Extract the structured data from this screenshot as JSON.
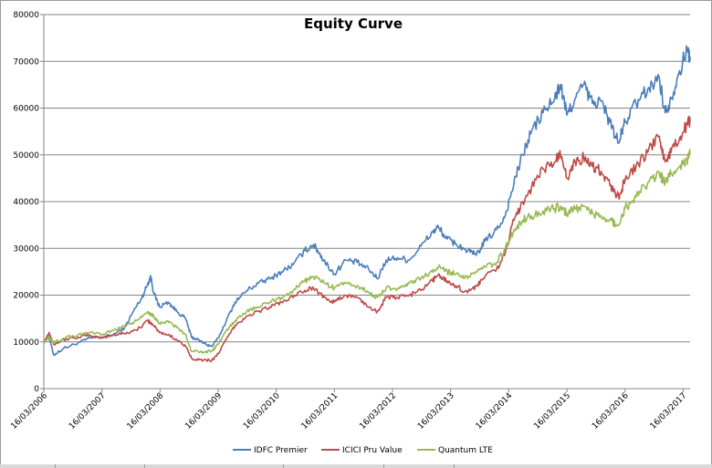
{
  "chart_data": {
    "type": "line",
    "title": "Equity Curve",
    "xlabel": "",
    "ylabel": "",
    "ylim": [
      0,
      80000
    ],
    "y_ticks": [
      "0",
      "10000",
      "20000",
      "30000",
      "40000",
      "50000",
      "60000",
      "70000",
      "80000"
    ],
    "x_ticks": [
      "16/03/2006",
      "16/03/2007",
      "16/03/2008",
      "16/03/2009",
      "16/03/2010",
      "16/03/2011",
      "16/03/2012",
      "16/03/2013",
      "16/03/2014",
      "16/03/2015",
      "16/03/2016",
      "16/03/2017"
    ],
    "x_range": [
      2006.21,
      2017.33
    ],
    "grid": true,
    "legend_position": "bottom",
    "series": [
      {
        "name": "IDFC Premier",
        "color": "#4a7ebb",
        "points": [
          [
            2006.21,
            10000
          ],
          [
            2006.3,
            11000
          ],
          [
            2006.38,
            7200
          ],
          [
            2006.55,
            8600
          ],
          [
            2006.8,
            9800
          ],
          [
            2007.0,
            10800
          ],
          [
            2007.21,
            11000
          ],
          [
            2007.4,
            11500
          ],
          [
            2007.6,
            13000
          ],
          [
            2007.75,
            16500
          ],
          [
            2007.9,
            19500
          ],
          [
            2008.0,
            22500
          ],
          [
            2008.05,
            24000
          ],
          [
            2008.1,
            20500
          ],
          [
            2008.2,
            17500
          ],
          [
            2008.35,
            18500
          ],
          [
            2008.5,
            16500
          ],
          [
            2008.65,
            15000
          ],
          [
            2008.75,
            11000
          ],
          [
            2008.85,
            10500
          ],
          [
            2009.0,
            9500
          ],
          [
            2009.1,
            9000
          ],
          [
            2009.21,
            10800
          ],
          [
            2009.35,
            14500
          ],
          [
            2009.5,
            18500
          ],
          [
            2009.7,
            21000
          ],
          [
            2009.9,
            22500
          ],
          [
            2010.1,
            23500
          ],
          [
            2010.3,
            25000
          ],
          [
            2010.5,
            26500
          ],
          [
            2010.7,
            29500
          ],
          [
            2010.85,
            30800
          ],
          [
            2010.95,
            29000
          ],
          [
            2011.05,
            27000
          ],
          [
            2011.21,
            24500
          ],
          [
            2011.4,
            27500
          ],
          [
            2011.6,
            27000
          ],
          [
            2011.8,
            25500
          ],
          [
            2011.95,
            23500
          ],
          [
            2012.1,
            27500
          ],
          [
            2012.3,
            28000
          ],
          [
            2012.5,
            27500
          ],
          [
            2012.7,
            30500
          ],
          [
            2012.9,
            33500
          ],
          [
            2013.0,
            34500
          ],
          [
            2013.15,
            32000
          ],
          [
            2013.3,
            31000
          ],
          [
            2013.5,
            29500
          ],
          [
            2013.65,
            28500
          ],
          [
            2013.8,
            31500
          ],
          [
            2014.0,
            34000
          ],
          [
            2014.15,
            37000
          ],
          [
            2014.3,
            44000
          ],
          [
            2014.45,
            50000
          ],
          [
            2014.6,
            55000
          ],
          [
            2014.8,
            59000
          ],
          [
            2015.0,
            62000
          ],
          [
            2015.1,
            65000
          ],
          [
            2015.21,
            58500
          ],
          [
            2015.35,
            62000
          ],
          [
            2015.5,
            65000
          ],
          [
            2015.65,
            61000
          ],
          [
            2015.8,
            61500
          ],
          [
            2015.95,
            57000
          ],
          [
            2016.1,
            52500
          ],
          [
            2016.21,
            57000
          ],
          [
            2016.4,
            61000
          ],
          [
            2016.6,
            64000
          ],
          [
            2016.8,
            66500
          ],
          [
            2016.9,
            59000
          ],
          [
            2017.0,
            62000
          ],
          [
            2017.15,
            68000
          ],
          [
            2017.28,
            72500
          ],
          [
            2017.33,
            71000
          ]
        ]
      },
      {
        "name": "ICICI Pru Value",
        "color": "#be4b48",
        "points": [
          [
            2006.21,
            10000
          ],
          [
            2006.3,
            12000
          ],
          [
            2006.38,
            9500
          ],
          [
            2006.55,
            10500
          ],
          [
            2006.8,
            11000
          ],
          [
            2007.0,
            11500
          ],
          [
            2007.21,
            10800
          ],
          [
            2007.4,
            11500
          ],
          [
            2007.6,
            11800
          ],
          [
            2007.8,
            12500
          ],
          [
            2008.0,
            14500
          ],
          [
            2008.1,
            13500
          ],
          [
            2008.2,
            12000
          ],
          [
            2008.35,
            11500
          ],
          [
            2008.5,
            10500
          ],
          [
            2008.65,
            9000
          ],
          [
            2008.75,
            6500
          ],
          [
            2008.9,
            6200
          ],
          [
            2009.1,
            6000
          ],
          [
            2009.21,
            7500
          ],
          [
            2009.35,
            10500
          ],
          [
            2009.5,
            13500
          ],
          [
            2009.7,
            15500
          ],
          [
            2009.9,
            16500
          ],
          [
            2010.1,
            17500
          ],
          [
            2010.3,
            18500
          ],
          [
            2010.5,
            19500
          ],
          [
            2010.7,
            21000
          ],
          [
            2010.85,
            21500
          ],
          [
            2011.05,
            19500
          ],
          [
            2011.21,
            18500
          ],
          [
            2011.4,
            20000
          ],
          [
            2011.6,
            19500
          ],
          [
            2011.8,
            17500
          ],
          [
            2011.95,
            16500
          ],
          [
            2012.1,
            19500
          ],
          [
            2012.3,
            19500
          ],
          [
            2012.5,
            20000
          ],
          [
            2012.7,
            21000
          ],
          [
            2012.9,
            23000
          ],
          [
            2013.0,
            24500
          ],
          [
            2013.15,
            23000
          ],
          [
            2013.3,
            22000
          ],
          [
            2013.5,
            20500
          ],
          [
            2013.65,
            22000
          ],
          [
            2013.8,
            24000
          ],
          [
            2014.0,
            25500
          ],
          [
            2014.15,
            29000
          ],
          [
            2014.3,
            36000
          ],
          [
            2014.45,
            40000
          ],
          [
            2014.6,
            43000
          ],
          [
            2014.8,
            47000
          ],
          [
            2015.0,
            48500
          ],
          [
            2015.1,
            50000
          ],
          [
            2015.21,
            45000
          ],
          [
            2015.35,
            48500
          ],
          [
            2015.5,
            49500
          ],
          [
            2015.65,
            47500
          ],
          [
            2015.8,
            46500
          ],
          [
            2015.95,
            43500
          ],
          [
            2016.1,
            41000
          ],
          [
            2016.21,
            44500
          ],
          [
            2016.4,
            47500
          ],
          [
            2016.6,
            50500
          ],
          [
            2016.8,
            54000
          ],
          [
            2016.9,
            48500
          ],
          [
            2017.0,
            50500
          ],
          [
            2017.15,
            53500
          ],
          [
            2017.28,
            56500
          ],
          [
            2017.33,
            57000
          ]
        ]
      },
      {
        "name": "Quantum LTE",
        "color": "#98b954",
        "points": [
          [
            2006.21,
            10000
          ],
          [
            2006.3,
            11000
          ],
          [
            2006.38,
            9800
          ],
          [
            2006.55,
            10800
          ],
          [
            2006.8,
            11500
          ],
          [
            2007.0,
            12000
          ],
          [
            2007.21,
            11500
          ],
          [
            2007.4,
            12500
          ],
          [
            2007.6,
            13200
          ],
          [
            2007.8,
            14500
          ],
          [
            2008.0,
            16500
          ],
          [
            2008.1,
            15500
          ],
          [
            2008.2,
            14000
          ],
          [
            2008.35,
            14500
          ],
          [
            2008.5,
            13000
          ],
          [
            2008.65,
            11500
          ],
          [
            2008.75,
            8000
          ],
          [
            2008.9,
            7800
          ],
          [
            2009.1,
            8000
          ],
          [
            2009.21,
            9500
          ],
          [
            2009.35,
            12500
          ],
          [
            2009.5,
            14500
          ],
          [
            2009.7,
            16500
          ],
          [
            2009.9,
            17500
          ],
          [
            2010.1,
            18500
          ],
          [
            2010.3,
            19500
          ],
          [
            2010.5,
            21000
          ],
          [
            2010.7,
            23000
          ],
          [
            2010.85,
            24000
          ],
          [
            2011.05,
            22500
          ],
          [
            2011.21,
            21500
          ],
          [
            2011.4,
            22500
          ],
          [
            2011.6,
            22000
          ],
          [
            2011.8,
            20500
          ],
          [
            2011.95,
            19500
          ],
          [
            2012.1,
            21500
          ],
          [
            2012.3,
            21500
          ],
          [
            2012.5,
            22500
          ],
          [
            2012.7,
            23500
          ],
          [
            2012.9,
            25000
          ],
          [
            2013.0,
            26000
          ],
          [
            2013.15,
            25000
          ],
          [
            2013.3,
            24500
          ],
          [
            2013.5,
            23500
          ],
          [
            2013.65,
            25000
          ],
          [
            2013.8,
            26000
          ],
          [
            2014.0,
            27000
          ],
          [
            2014.15,
            30000
          ],
          [
            2014.3,
            34000
          ],
          [
            2014.45,
            36000
          ],
          [
            2014.6,
            37000
          ],
          [
            2014.8,
            38000
          ],
          [
            2015.0,
            38500
          ],
          [
            2015.1,
            39000
          ],
          [
            2015.21,
            37500
          ],
          [
            2015.35,
            38500
          ],
          [
            2015.5,
            39000
          ],
          [
            2015.65,
            37500
          ],
          [
            2015.8,
            37000
          ],
          [
            2015.95,
            36000
          ],
          [
            2016.1,
            35000
          ],
          [
            2016.21,
            38500
          ],
          [
            2016.4,
            41000
          ],
          [
            2016.6,
            44000
          ],
          [
            2016.8,
            46000
          ],
          [
            2016.9,
            44000
          ],
          [
            2017.0,
            46000
          ],
          [
            2017.15,
            47500
          ],
          [
            2017.28,
            49000
          ],
          [
            2017.33,
            50000
          ]
        ]
      }
    ]
  }
}
